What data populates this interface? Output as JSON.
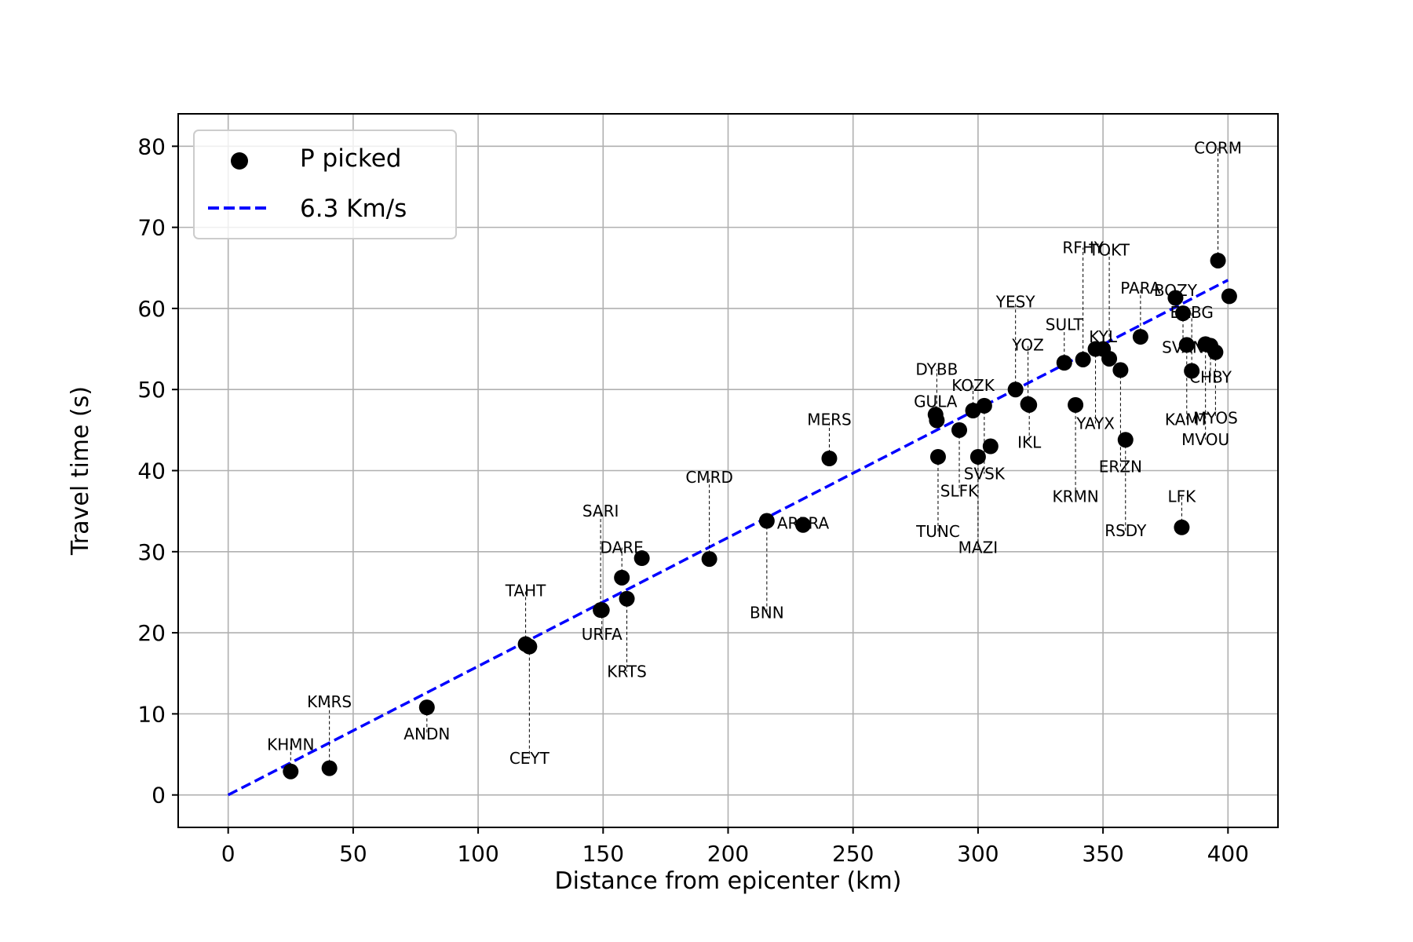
{
  "chart_data": {
    "type": "scatter",
    "xlabel": "Distance from epicenter (km)",
    "ylabel": "Travel time (s)",
    "xlim": [
      -20,
      420
    ],
    "ylim": [
      -4,
      84
    ],
    "xticks": [
      0,
      50,
      100,
      150,
      200,
      250,
      300,
      350,
      400
    ],
    "yticks": [
      0,
      10,
      20,
      30,
      40,
      50,
      60,
      70,
      80
    ],
    "grid": true,
    "legend": {
      "placement": "top-left",
      "entries": [
        {
          "label": "P picked",
          "marker": "circle",
          "color": "#000000"
        },
        {
          "label": "6.3 Km/s",
          "style": "dashed",
          "color": "#0000ff"
        }
      ]
    },
    "fit_line": {
      "name": "6.3 Km/s",
      "velocity_km_s": 6.3,
      "x_range": [
        0,
        400
      ],
      "color": "#0000ff"
    },
    "points": [
      {
        "station": "KHMN",
        "x": 25,
        "y": 2.9,
        "label_y": 6.2
      },
      {
        "station": "KMRS",
        "x": 40.5,
        "y": 3.3,
        "label_y": 11.5
      },
      {
        "station": "ANDN",
        "x": 79.5,
        "y": 10.8,
        "label_y": 7.5
      },
      {
        "station": "TAHT",
        "x": 119,
        "y": 18.6,
        "label_y": 25.2
      },
      {
        "station": "CEYT",
        "x": 120.5,
        "y": 18.3,
        "label_y": 4.5
      },
      {
        "station": "URFA",
        "x": 149.5,
        "y": 22.8,
        "label_y": 19.8
      },
      {
        "station": "SARI",
        "x": 149,
        "y": 22.8,
        "label_y": 35
      },
      {
        "station": "DARE",
        "x": 157.5,
        "y": 26.8,
        "label_y": 30.5
      },
      {
        "station": "KRTS",
        "x": 159.5,
        "y": 24.2,
        "label_y": 15.2
      },
      {
        "station": "",
        "x": 165.5,
        "y": 29.2,
        "label_y": null
      },
      {
        "station": "CMRD",
        "x": 192.5,
        "y": 29.1,
        "label_y": 39.2
      },
      {
        "station": "BNN",
        "x": 215.5,
        "y": 33.8,
        "label_y": 22.5
      },
      {
        "station": "ARPRA",
        "x": 230,
        "y": 33.3,
        "label_y": 33.5
      },
      {
        "station": "MERS",
        "x": 240.5,
        "y": 41.5,
        "label_y": 46.3
      },
      {
        "station": "GULA",
        "x": 283,
        "y": 46.9,
        "label_y": 48.5
      },
      {
        "station": "DYBB",
        "x": 283.5,
        "y": 46.2,
        "label_y": 52.5
      },
      {
        "station": "TUNC",
        "x": 284,
        "y": 41.7,
        "label_y": 32.5
      },
      {
        "station": "SLFK",
        "x": 292.5,
        "y": 45.0,
        "label_y": 37.5
      },
      {
        "station": "KOZK",
        "x": 298,
        "y": 47.4,
        "label_y": 50.5
      },
      {
        "station": "MAZI",
        "x": 300,
        "y": 41.7,
        "label_y": 30.5
      },
      {
        "station": "SVSK",
        "x": 302.5,
        "y": 48.0,
        "label_y": 39.6
      },
      {
        "station": "",
        "x": 305,
        "y": 43.0,
        "label_y": null
      },
      {
        "station": "YESY",
        "x": 315,
        "y": 50.0,
        "label_y": 60.8
      },
      {
        "station": "YOZ",
        "x": 320,
        "y": 48.2,
        "label_y": 55.5
      },
      {
        "station": "IKL",
        "x": 320.5,
        "y": 48.1,
        "label_y": 43.5
      },
      {
        "station": "SULT",
        "x": 334.5,
        "y": 53.3,
        "label_y": 58.0
      },
      {
        "station": "KRMN",
        "x": 339,
        "y": 48.1,
        "label_y": 36.8
      },
      {
        "station": "RFHY",
        "x": 342,
        "y": 53.7,
        "label_y": 67.5
      },
      {
        "station": "YAYX",
        "x": 347,
        "y": 55.0,
        "label_y": 45.8
      },
      {
        "station": "KYL",
        "x": 350,
        "y": 55.0,
        "label_y": 56.5
      },
      {
        "station": "TOKT",
        "x": 352.5,
        "y": 53.8,
        "label_y": 67.2
      },
      {
        "station": "ERZN",
        "x": 357,
        "y": 52.4,
        "label_y": 40.5
      },
      {
        "station": "RSDY",
        "x": 359,
        "y": 43.8,
        "label_y": 32.6
      },
      {
        "station": "PARA",
        "x": 365,
        "y": 56.5,
        "label_y": 62.5
      },
      {
        "station": "BOZY",
        "x": 379,
        "y": 61.3,
        "label_y": 62.2
      },
      {
        "station": "LFK",
        "x": 381.5,
        "y": 33.0,
        "label_y": 36.8
      },
      {
        "station": "SVAN",
        "x": 382,
        "y": 59.4,
        "label_y": 55.2
      },
      {
        "station": "KAMT",
        "x": 383.5,
        "y": 55.5,
        "label_y": 46.3
      },
      {
        "station": "ERBG",
        "x": 385.5,
        "y": 52.3,
        "label_y": 59.5
      },
      {
        "station": "MVOU",
        "x": 391,
        "y": 55.6,
        "label_y": 43.8
      },
      {
        "station": "CHBY",
        "x": 393,
        "y": 55.4,
        "label_y": 51.5
      },
      {
        "station": "MYOS",
        "x": 395,
        "y": 54.6,
        "label_y": 46.5
      },
      {
        "station": "CORM",
        "x": 396,
        "y": 65.9,
        "label_y": 79.8
      },
      {
        "station": "",
        "x": 400.5,
        "y": 61.5,
        "label_y": null
      }
    ]
  }
}
